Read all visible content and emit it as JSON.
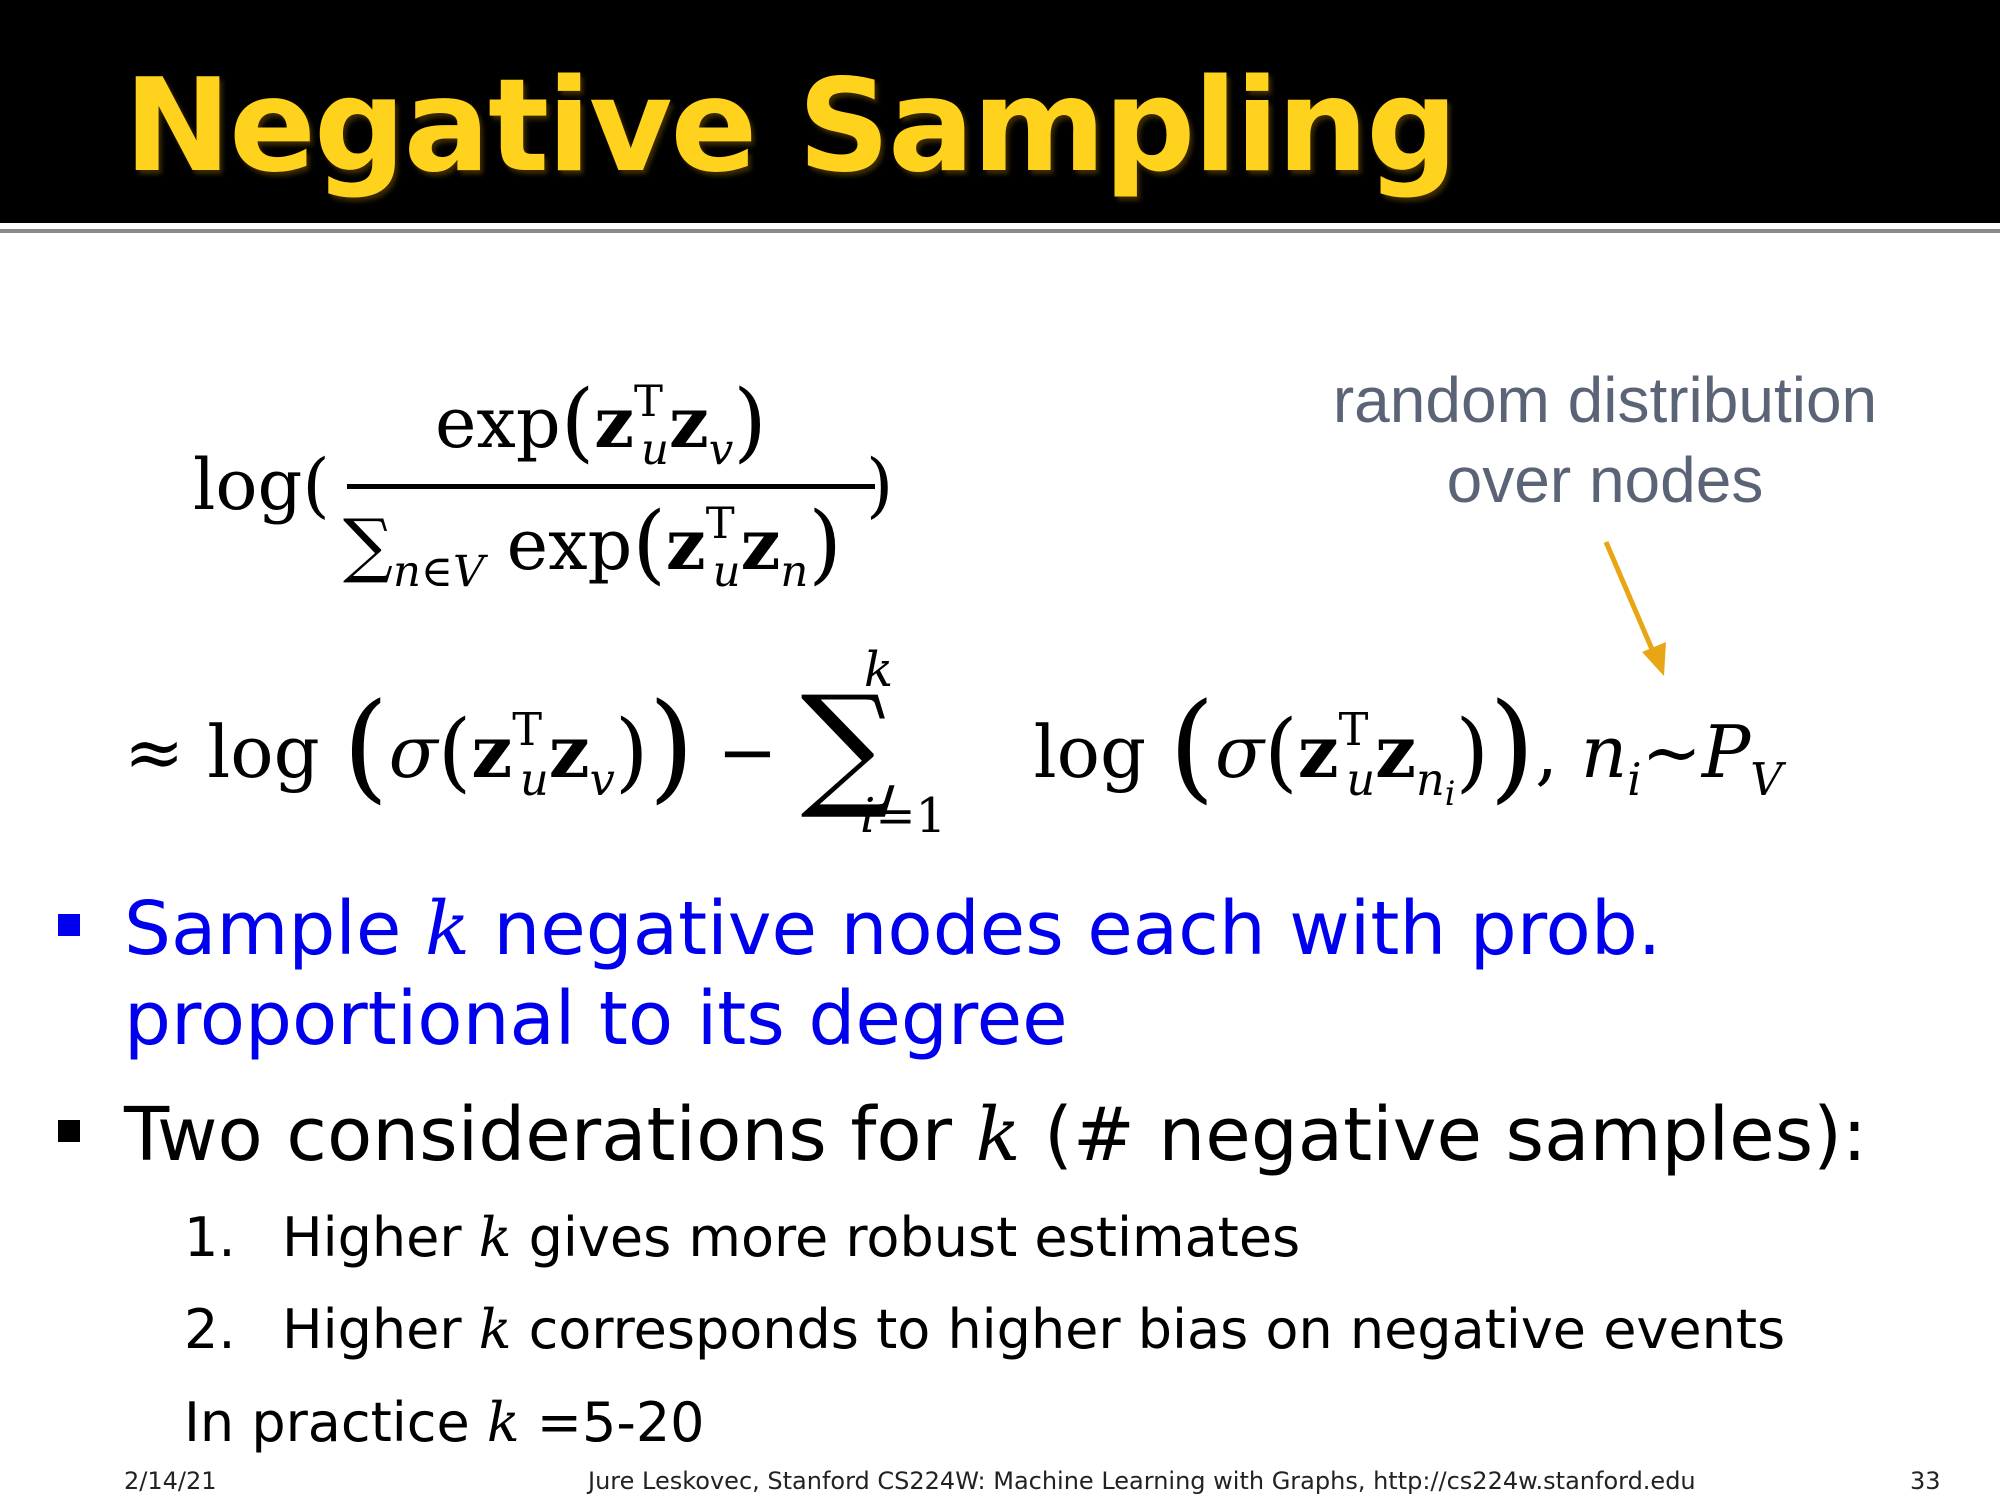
{
  "slide": {
    "title": "Negative Sampling",
    "annotation": {
      "line1": "random distribution",
      "line2": "over nodes"
    },
    "bullets": [
      {
        "parts": [
          "Sample ",
          "k",
          " negative nodes each with prob. proportional to its degree"
        ]
      },
      {
        "parts": [
          "Two considerations for ",
          "k",
          " (# negative samples):"
        ]
      }
    ],
    "sub_items": [
      {
        "number": "1.",
        "parts": [
          "Higher ",
          "k",
          " gives more robust estimates"
        ]
      },
      {
        "number": "2.",
        "parts": [
          "Higher ",
          "k",
          " corresponds to higher bias on negative events"
        ]
      }
    ],
    "practice": {
      "parts": [
        "In practice ",
        "k",
        " =5-20"
      ]
    },
    "footer": {
      "date": "2/14/21",
      "credit": "Jure Leskovec, Stanford CS224W: Machine Learning with Graphs, http://cs224w.stanford.edu",
      "page": "33"
    }
  },
  "colors": {
    "title": "#ffd21e",
    "header_bg": "#000000",
    "bullet_blue": "#0000ee",
    "annotation": "#5b6476",
    "arrow": "#e8a617"
  }
}
